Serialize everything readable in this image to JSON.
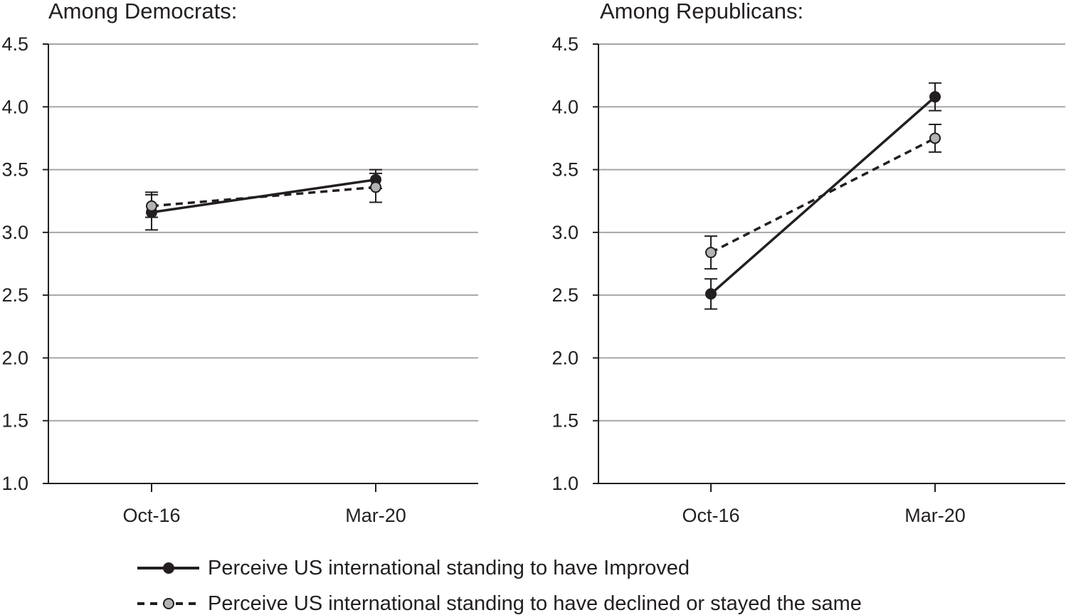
{
  "chart_data": [
    {
      "type": "line",
      "title": "Among Democrats:",
      "categories": [
        "Oct-16",
        "Mar-20"
      ],
      "ylim": [
        1.0,
        4.5
      ],
      "yticks": [
        "1.0",
        "1.5",
        "2.0",
        "2.5",
        "3.0",
        "3.5",
        "4.0",
        "4.5"
      ],
      "grid": true,
      "series": [
        {
          "name": "Perceive US international standing to have Improved",
          "values": [
            3.16,
            3.42
          ],
          "lower": [
            3.02,
            3.35
          ],
          "upper": [
            3.3,
            3.5
          ],
          "line": "solid",
          "marker_color": "#231f20"
        },
        {
          "name": "Perceive US international standing to have declined or stayed the same",
          "values": [
            3.21,
            3.36
          ],
          "lower": [
            3.12,
            3.24
          ],
          "upper": [
            3.32,
            3.47
          ],
          "line": "dashed",
          "marker_color": "#b3b3b3"
        }
      ]
    },
    {
      "type": "line",
      "title": "Among Republicans:",
      "categories": [
        "Oct-16",
        "Mar-20"
      ],
      "ylim": [
        1.0,
        4.5
      ],
      "yticks": [
        "1.0",
        "1.5",
        "2.0",
        "2.5",
        "3.0",
        "3.5",
        "4.0",
        "4.5"
      ],
      "grid": true,
      "series": [
        {
          "name": "Perceive US international standing to have Improved",
          "values": [
            2.51,
            4.08
          ],
          "lower": [
            2.39,
            3.97
          ],
          "upper": [
            2.63,
            4.19
          ],
          "line": "solid",
          "marker_color": "#231f20"
        },
        {
          "name": "Perceive US international standing to have declined or stayed the same",
          "values": [
            2.84,
            3.75
          ],
          "lower": [
            2.71,
            3.64
          ],
          "upper": [
            2.97,
            3.86
          ],
          "line": "dashed",
          "marker_color": "#b3b3b3"
        }
      ]
    }
  ],
  "legend": {
    "placement": "bottom",
    "items": [
      {
        "label": "Perceive US international standing to have Improved",
        "line": "solid",
        "marker_color": "#231f20"
      },
      {
        "label": "Perceive US international standing to have declined or stayed the same",
        "line": "dashed",
        "marker_color": "#b3b3b3"
      }
    ]
  }
}
